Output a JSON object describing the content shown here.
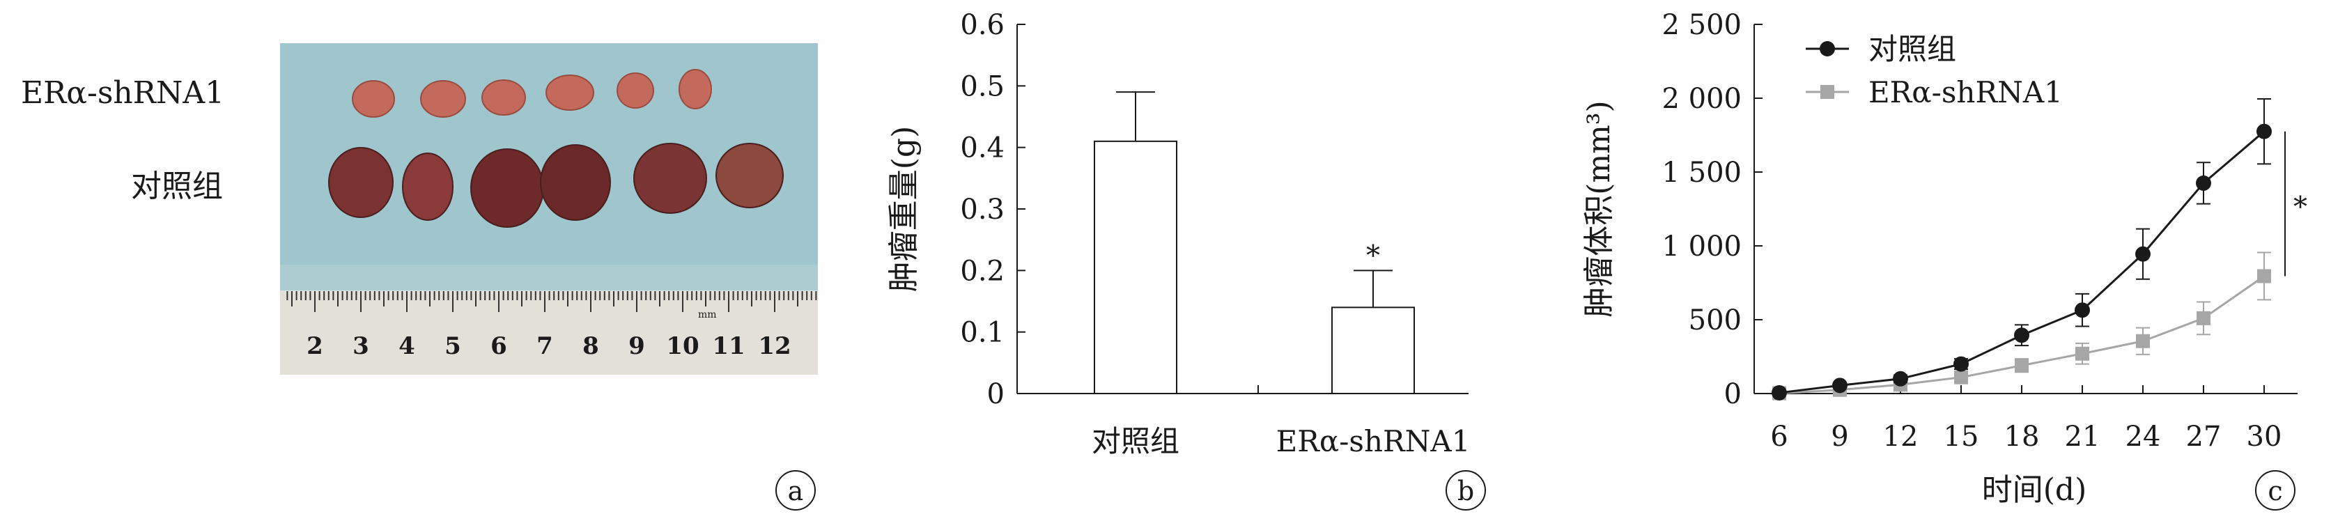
{
  "panel_a": {
    "label": "a",
    "row_top_label": "ERα-shRNA1",
    "row_bottom_label": "对照组",
    "ruler_numbers": [
      "2",
      "3",
      "4",
      "5",
      "6",
      "7",
      "8",
      "9",
      "10",
      "11",
      "12"
    ],
    "ruler_unit": "mm"
  },
  "panel_b": {
    "label": "b",
    "significance_marker": "*"
  },
  "panel_c": {
    "label": "c",
    "significance_marker": "*"
  },
  "colors": {
    "control": "#1a1a1a",
    "treatment": "#a6a6a6",
    "photo_background": "#9ec6cc"
  },
  "chart_data": [
    {
      "type": "bar",
      "title": "",
      "xlabel": "",
      "ylabel": "肿瘤重量(g)",
      "categories": [
        "对照组",
        "ERα-shRNA1"
      ],
      "values": [
        0.41,
        0.14
      ],
      "errors": [
        0.08,
        0.06
      ],
      "ylim": [
        0,
        0.6
      ],
      "yticks": [
        "0",
        "0.1",
        "0.2",
        "0.3",
        "0.4",
        "0.5",
        "0.6"
      ],
      "grid": false
    },
    {
      "type": "line",
      "title": "",
      "xlabel": "时间(d)",
      "ylabel": "肿瘤体积(mm³)",
      "x": [
        6,
        9,
        12,
        15,
        18,
        21,
        24,
        27,
        30
      ],
      "xticks": [
        "6",
        "9",
        "12",
        "15",
        "18",
        "21",
        "24",
        "27",
        "30"
      ],
      "ylim": [
        0,
        2500
      ],
      "yticks": [
        "0",
        "500",
        "1 000",
        "1 500",
        "2 000",
        "2 500"
      ],
      "legend_position": "top-left",
      "grid": false,
      "series": [
        {
          "name": "对照组",
          "marker": "circle",
          "values": [
            5,
            55,
            100,
            200,
            395,
            565,
            945,
            1425,
            1775
          ],
          "errors": [
            10,
            15,
            25,
            35,
            70,
            110,
            170,
            140,
            220
          ]
        },
        {
          "name": "ERα-shRNA1",
          "marker": "square",
          "values": [
            2,
            25,
            60,
            110,
            190,
            270,
            355,
            510,
            795
          ],
          "errors": [
            8,
            12,
            20,
            30,
            45,
            70,
            90,
            110,
            160
          ]
        }
      ]
    }
  ]
}
